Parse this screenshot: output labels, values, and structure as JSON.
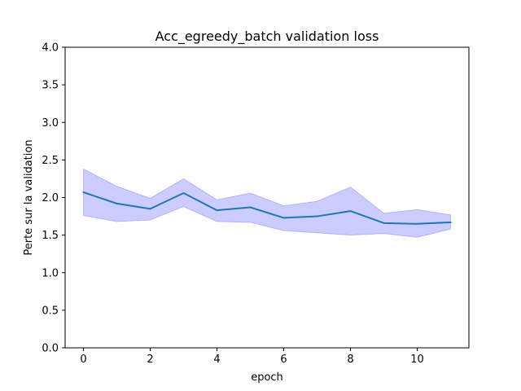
{
  "chart_data": {
    "type": "line",
    "title": "Acc_egreedy_batch validation loss",
    "xlabel": "epoch",
    "ylabel": "Perte sur la validation",
    "xlim": [
      -0.55,
      11.55
    ],
    "ylim": [
      0.0,
      4.0
    ],
    "xticks": [
      0,
      2,
      4,
      6,
      8,
      10
    ],
    "xtick_labels": [
      "0",
      "2",
      "4",
      "6",
      "8",
      "10"
    ],
    "yticks": [
      0.0,
      0.5,
      1.0,
      1.5,
      2.0,
      2.5,
      3.0,
      3.5,
      4.0
    ],
    "ytick_labels": [
      "0.0",
      "0.5",
      "1.0",
      "1.5",
      "2.0",
      "2.5",
      "3.0",
      "3.5",
      "4.0"
    ],
    "grid": false,
    "series": [
      {
        "x": [
          0,
          1,
          2,
          3,
          4,
          5,
          6,
          7,
          8,
          9,
          10,
          11
        ],
        "values": [
          2.07,
          1.92,
          1.85,
          2.06,
          1.83,
          1.87,
          1.73,
          1.75,
          1.82,
          1.66,
          1.65,
          1.67
        ],
        "lower": [
          1.76,
          1.68,
          1.7,
          1.88,
          1.68,
          1.67,
          1.56,
          1.53,
          1.5,
          1.52,
          1.47,
          1.58
        ],
        "upper": [
          2.38,
          2.15,
          1.99,
          2.25,
          1.97,
          2.06,
          1.89,
          1.95,
          2.14,
          1.79,
          1.84,
          1.77
        ],
        "line_color": "#1f77b4",
        "band_color": "#0000ff"
      }
    ]
  }
}
